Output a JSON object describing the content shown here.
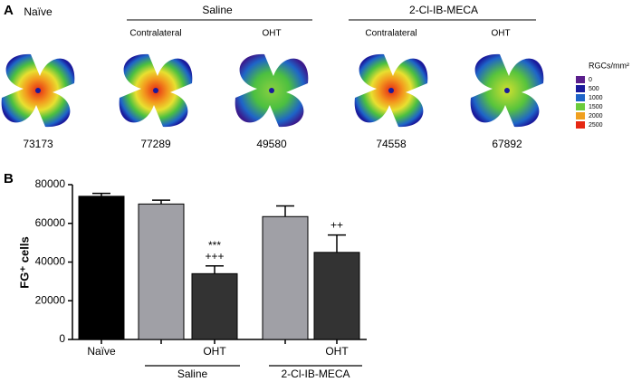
{
  "panel_a": {
    "label": "A",
    "groups": [
      "Saline",
      "2-Cl-IB-MECA"
    ],
    "retinas": [
      {
        "heading": "Naïve",
        "count": 73173
      },
      {
        "heading": "Contralateral",
        "count": 77289
      },
      {
        "heading": "OHT",
        "count": 49580
      },
      {
        "heading": "Contralateral",
        "count": 74558
      },
      {
        "heading": "OHT",
        "count": 67892
      }
    ],
    "legend": {
      "title": "RGCs/mm²",
      "ticks": [
        0,
        500,
        1000,
        1500,
        2000,
        2500
      ],
      "colors": [
        "#5a1e8c",
        "#1a1a9c",
        "#1e64c8",
        "#6ccc3c",
        "#f0a020",
        "#e62814"
      ]
    }
  },
  "chart_data": {
    "type": "bar",
    "label": "B",
    "ylabel": "FG⁺ cells",
    "categories": [
      "Naïve",
      null,
      "OHT",
      null,
      "OHT"
    ],
    "values": [
      74000,
      70000,
      34000,
      63500,
      45000
    ],
    "errors": [
      1500,
      2000,
      4000,
      5500,
      9000
    ],
    "colors": [
      "#000000",
      "#a0a0a6",
      "#333333",
      "#a0a0a6",
      "#333333"
    ],
    "annotations": [
      null,
      null,
      [
        "***",
        "+++"
      ],
      null,
      [
        "++"
      ]
    ],
    "groups": [
      "Saline",
      "2-Cl-IB-MECA"
    ],
    "ylim": [
      0,
      80000
    ],
    "yticks": [
      0,
      20000,
      40000,
      60000,
      80000
    ]
  }
}
